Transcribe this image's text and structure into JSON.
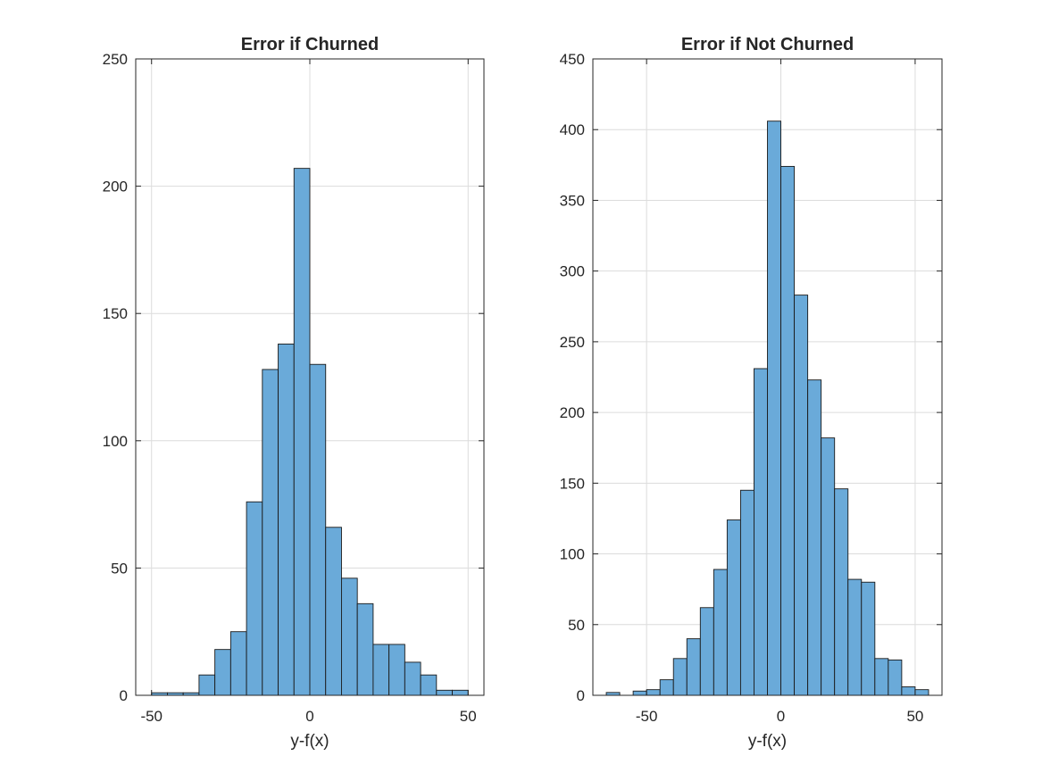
{
  "chart_data": [
    {
      "type": "bar",
      "title": "Error if Churned",
      "xlabel": "y-f(x)",
      "ylabel": "",
      "xlim": [
        -55,
        55
      ],
      "ylim": [
        0,
        250
      ],
      "xticks": [
        -50,
        0,
        50
      ],
      "yticks": [
        0,
        50,
        100,
        150,
        200,
        250
      ],
      "grid": true,
      "bar_color": "#6aaad9",
      "edge_color": "#1a1a1a",
      "bin_edges": [
        -50,
        -45,
        -40,
        -35,
        -30,
        -25,
        -20,
        -15,
        -10,
        -5,
        0,
        5,
        10,
        15,
        20,
        25,
        30,
        35,
        40,
        45,
        50
      ],
      "values": [
        1,
        1,
        1,
        8,
        18,
        25,
        76,
        128,
        138,
        207,
        130,
        66,
        46,
        36,
        20,
        20,
        13,
        8,
        2,
        2
      ]
    },
    {
      "type": "bar",
      "title": "Error if Not Churned",
      "xlabel": "y-f(x)",
      "ylabel": "",
      "xlim": [
        -70,
        60
      ],
      "ylim": [
        0,
        450
      ],
      "xticks": [
        -50,
        0,
        50
      ],
      "yticks": [
        0,
        50,
        100,
        150,
        200,
        250,
        300,
        350,
        400,
        450
      ],
      "grid": true,
      "bar_color": "#6aaad9",
      "edge_color": "#1a1a1a",
      "bin_edges": [
        -65,
        -60,
        -55,
        -50,
        -45,
        -40,
        -35,
        -30,
        -25,
        -20,
        -15,
        -10,
        -5,
        0,
        5,
        10,
        15,
        20,
        25,
        30,
        35,
        40,
        45,
        50,
        55
      ],
      "values": [
        2,
        0,
        3,
        4,
        11,
        26,
        40,
        62,
        89,
        124,
        145,
        231,
        406,
        374,
        283,
        223,
        182,
        146,
        82,
        80,
        26,
        25,
        6,
        4
      ]
    }
  ]
}
